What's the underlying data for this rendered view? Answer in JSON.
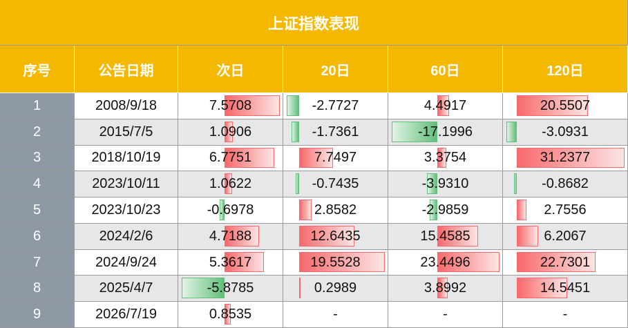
{
  "title": "上证指数表现",
  "table": {
    "headers": [
      "序号",
      "公告日期",
      "次日",
      "20日",
      "60日",
      "120日"
    ],
    "rows": [
      [
        "1",
        "2008/9/18",
        "7.5708",
        "-2.7727",
        "4.4917",
        "20.5507"
      ],
      [
        "2",
        "2015/7/5",
        "1.0906",
        "-1.7361",
        "-17.1996",
        "-3.0931"
      ],
      [
        "3",
        "2018/10/19",
        "6.7751",
        "7.7497",
        "3.3754",
        "31.2377"
      ],
      [
        "4",
        "2023/10/11",
        "1.0622",
        "-0.7435",
        "-3.9310",
        "-0.8682"
      ],
      [
        "5",
        "2023/10/23",
        "-0.6978",
        "2.8582",
        "-2.9859",
        "2.7556"
      ],
      [
        "6",
        "2024/2/6",
        "4.7188",
        "12.6435",
        "15.4585",
        "6.2067"
      ],
      [
        "7",
        "2024/9/24",
        "5.3617",
        "19.5528",
        "23.4496",
        "22.7301"
      ],
      [
        "8",
        "2025/4/7",
        "-5.8785",
        "0.2989",
        "3.8992",
        "14.5451"
      ],
      [
        "9",
        "2026/7/19",
        "0.8535",
        "-",
        "-",
        "-"
      ]
    ]
  }
}
